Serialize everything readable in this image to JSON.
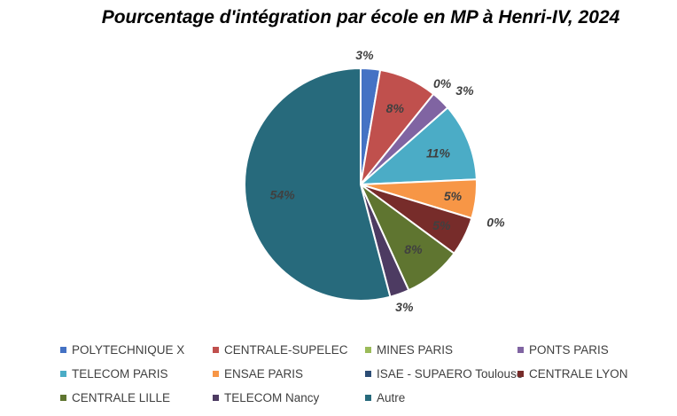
{
  "chart_data": {
    "type": "pie",
    "title": "Pourcentage d'intégration par école en MP à Henri-IV, 2024",
    "categories": [
      "POLYTECHNIQUE X",
      "CENTRALE-SUPELEC",
      "MINES PARIS",
      "PONTS PARIS",
      "TELECOM PARIS",
      "ENSAE PARIS",
      "ISAE - SUPAERO Toulouse",
      "CENTRALE LYON",
      "CENTRALE LILLE",
      "TELECOM Nancy",
      "Autre"
    ],
    "values": [
      2.7,
      8.1,
      0,
      2.7,
      10.8,
      5.4,
      0,
      5.4,
      8.1,
      2.7,
      54.1
    ],
    "labels": [
      "3%",
      "8%",
      "0%",
      "3%",
      "11%",
      "5%",
      "0%",
      "5%",
      "8%",
      "3%",
      "54%"
    ],
    "colors": [
      "#4472c4",
      "#c0504d",
      "#9bbb59",
      "#8064a2",
      "#4bacc6",
      "#f79646",
      "#2c4d75",
      "#772c2a",
      "#5f7530",
      "#4d3b62",
      "#276a7c"
    ],
    "legend_position": "bottom"
  }
}
